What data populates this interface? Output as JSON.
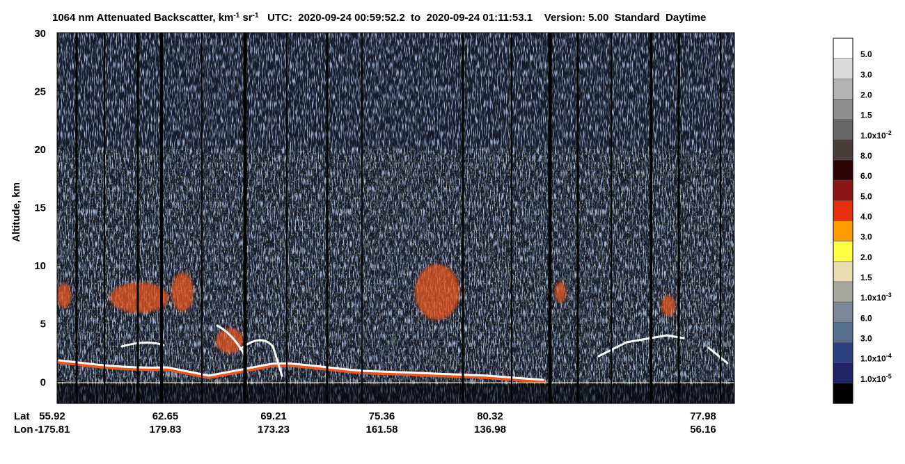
{
  "chart_data": {
    "type": "lidar-curtain",
    "title": [
      {
        "text": "1064 nm Attenuated Backscatter, km"
      },
      {
        "sup": "-1"
      },
      {
        "text": " sr"
      },
      {
        "sup": "-1"
      },
      {
        "text": "   UTC:  2020-09-24 00:59:52.2  to  2020-09-24 01:11:53.1    Version: 5.00  Standard  Daytime"
      }
    ],
    "y_label": "Altitude, km",
    "ylim": [
      -1.9,
      30
    ],
    "yticks": [
      0,
      5,
      10,
      15,
      20,
      25,
      30
    ],
    "x_row_labels": [
      "Lat",
      "Lon"
    ],
    "lat": [
      "55.92",
      "62.65",
      "69.21",
      "75.36",
      "80.32",
      null,
      "77.98"
    ],
    "lon": [
      "-175.81",
      "179.83",
      "173.23",
      "161.58",
      "136.98",
      null,
      "56.16"
    ],
    "colorbar": {
      "colors": [
        "#ffffff",
        "#dadada",
        "#b3b3b3",
        "#8e8e8e",
        "#686868",
        "#4a3e3c",
        "#2c0202",
        "#8c1616",
        "#e82e0e",
        "#ff9c00",
        "#ffff44",
        "#e8dcb0",
        "#a8aaa0",
        "#7c8898",
        "#587090",
        "#2e4282",
        "#202266",
        "#000000"
      ],
      "labels": [
        "5.0",
        "3.0",
        "2.0",
        "1.5",
        {
          "text": "1.0x10",
          "sup": "-2"
        },
        "8.0",
        "6.0",
        "5.0",
        "4.0",
        "3.0",
        "2.0",
        "1.5",
        {
          "text": "1.0x10",
          "sup": "-3"
        },
        "6.0",
        "3.0",
        {
          "text": "1.0x10",
          "sup": "-4"
        },
        {
          "text": "1.0x10",
          "sup": "-5"
        }
      ]
    }
  }
}
